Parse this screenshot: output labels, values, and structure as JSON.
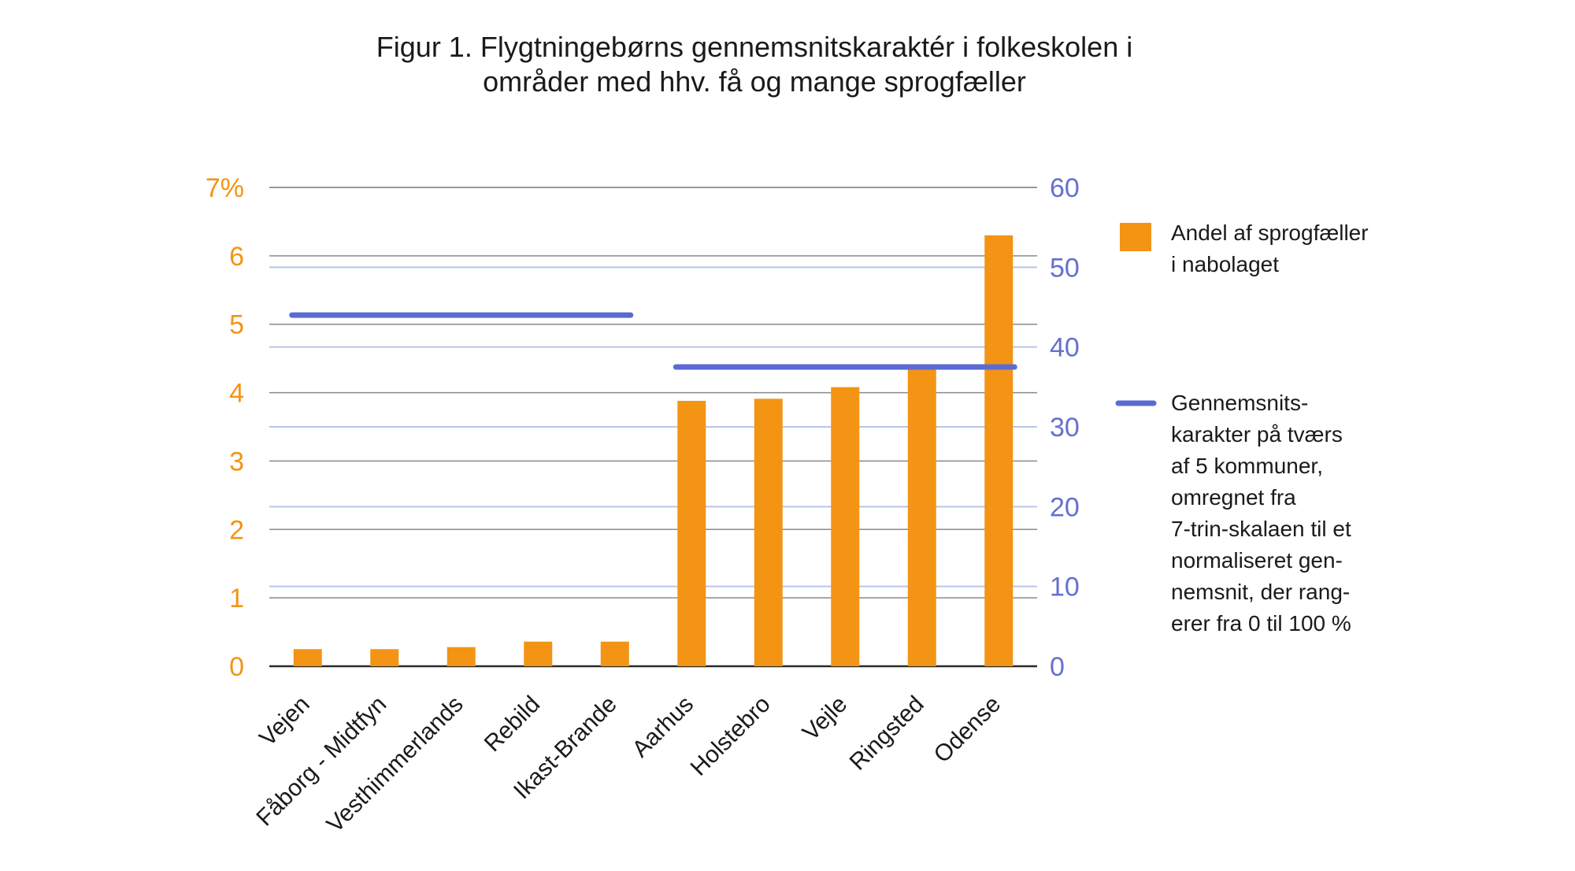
{
  "chart_data": {
    "type": "bar",
    "title_lines": [
      "Figur 1. Flygtningebørns gennemsnitskaraktér i folkeskolen i",
      "områder med hhv. få og mange sprogfæller"
    ],
    "categories": [
      "Vejen",
      "Fåborg - Midtfyn",
      "Vesthimmerlands",
      "Rebild",
      "Ikast-Brande",
      "Aarhus",
      "Holstebro",
      "Vejle",
      "Ringsted",
      "Odense"
    ],
    "series": [
      {
        "name": "Andel af sprogfæller i nabolaget",
        "axis": "left",
        "values": [
          0.25,
          0.25,
          0.28,
          0.36,
          0.36,
          3.88,
          3.91,
          4.08,
          4.38,
          6.3
        ]
      },
      {
        "name": "Gennemsnitskarakter på tværs af 5 kommuner, omregnet fra 7-trin-skalaen til et normaliseret gennemsnit, der rangerer fra 0 til 100 %",
        "axis": "right",
        "type": "line",
        "segments": [
          {
            "from": "Vejen",
            "to": "Ikast-Brande",
            "value": 44
          },
          {
            "from": "Aarhus",
            "to": "Odense",
            "value": 37.5
          }
        ]
      }
    ],
    "y_left": {
      "ticks": [
        "0",
        "1",
        "2",
        "3",
        "4",
        "5",
        "6",
        "7%"
      ],
      "min": 0,
      "max": 7
    },
    "y_right": {
      "ticks": [
        "0",
        "10",
        "20",
        "30",
        "40",
        "50",
        "60"
      ],
      "min": 0,
      "max": 60
    },
    "legend": {
      "position": "right",
      "bar_label_lines": [
        "Andel af sprogfæller",
        "i nabolaget"
      ],
      "line_label_lines": [
        "Gennemsnits-",
        "karakter på tværs",
        "af 5 kommuner,",
        "omregnet fra",
        "7-trin-skalaen til et",
        "normaliseret gen-",
        "nemsnit, der rang-",
        "erer fra 0 til 100 %"
      ]
    },
    "colors": {
      "bar": "#f39414",
      "line": "#5b6bd3",
      "left_axis_text": "#f39414",
      "right_axis_text": "#6470cf",
      "grid_left": "#8a8a8a",
      "grid_right": "#b9c5e6"
    },
    "grid": true
  }
}
